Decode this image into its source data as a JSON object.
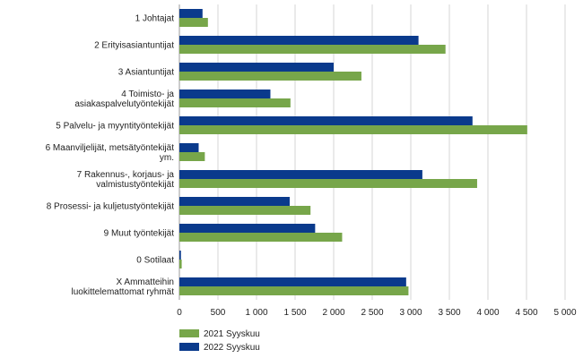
{
  "chart_data": {
    "type": "bar",
    "orientation": "horizontal",
    "categories": [
      [
        "1 Johtajat"
      ],
      [
        "2 Erityisasiantuntijat"
      ],
      [
        "3 Asiantuntijat"
      ],
      [
        "4 Toimisto- ja",
        "asiakaspalvelutyöntekijät"
      ],
      [
        "5 Palvelu- ja myyntityöntekijät"
      ],
      [
        "6 Maanviljelijät, metsätyöntekijät",
        "ym."
      ],
      [
        "7 Rakennus-, korjaus- ja",
        "valmistustyöntekijät"
      ],
      [
        "8 Prosessi- ja kuljetustyöntekijät"
      ],
      [
        "9 Muut työntekijät"
      ],
      [
        "0 Sotilaat"
      ],
      [
        "X Ammatteihin",
        "luokittelemattomat ryhmät"
      ]
    ],
    "series": [
      {
        "name": "2022 Syyskuu",
        "color": "#0a3a8c",
        "values": [
          300,
          3100,
          2000,
          1180,
          3800,
          250,
          3150,
          1430,
          1760,
          20,
          2940
        ]
      },
      {
        "name": "2021 Syyskuu",
        "color": "#77a64a",
        "values": [
          370,
          3450,
          2360,
          1440,
          4510,
          330,
          3860,
          1700,
          2110,
          30,
          2970
        ]
      }
    ],
    "legend_order": [
      "2021 Syyskuu",
      "2022 Syyskuu"
    ],
    "x_ticks": [
      "0",
      "500",
      "1 000",
      "1 500",
      "2 000",
      "2 500",
      "3 000",
      "3 500",
      "4 000",
      "4 500",
      "5 000"
    ],
    "xlim": [
      0,
      5000
    ],
    "grid": true,
    "legend_position": "bottom-left",
    "title": "",
    "xlabel": "",
    "ylabel": ""
  }
}
